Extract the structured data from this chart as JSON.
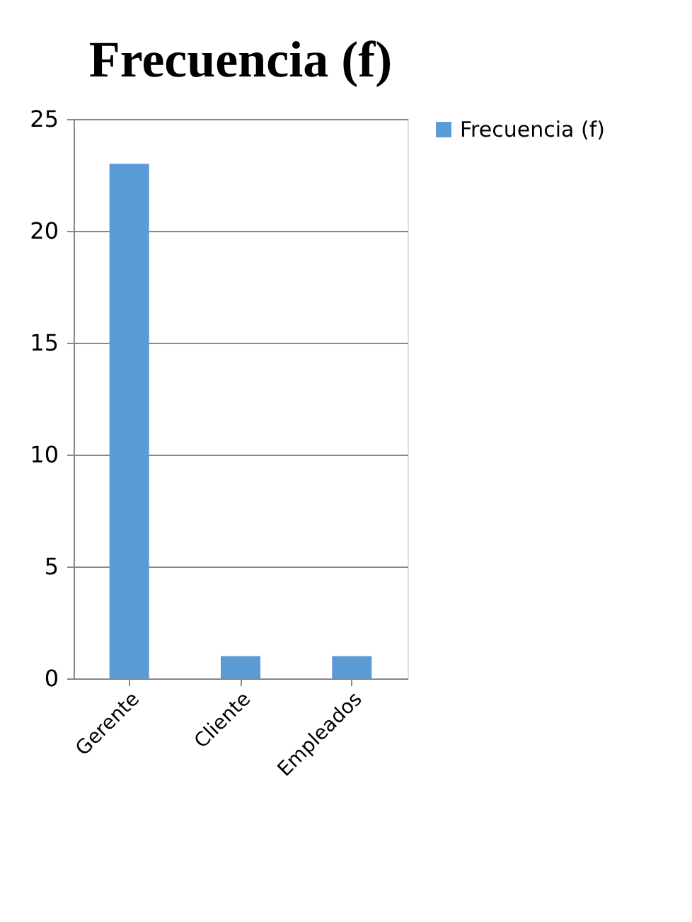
{
  "chart_data": {
    "type": "bar",
    "title": "Frecuencia (f)",
    "categories": [
      "Gerente",
      "Cliente",
      "Empleados"
    ],
    "series": [
      {
        "name": "Frecuencia (f)",
        "color": "#5b9bd5",
        "values": [
          23,
          1,
          1
        ]
      }
    ],
    "ylim": [
      0,
      25
    ],
    "yticks": [
      0,
      5,
      10,
      15,
      20,
      25
    ],
    "grid": "y",
    "legend": "right"
  }
}
